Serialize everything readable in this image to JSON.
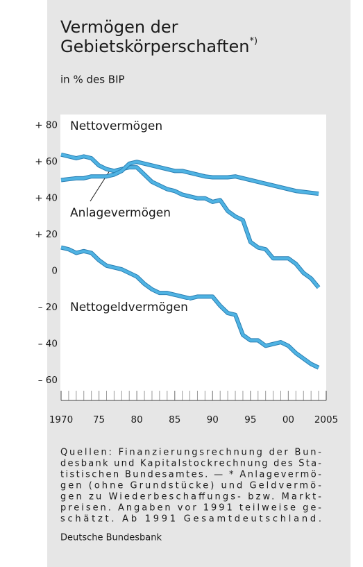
{
  "chart_data": {
    "type": "line",
    "title": [
      "Vermögen der",
      "Gebietskörperschaften"
    ],
    "footnote_marker": "*)",
    "y_label": "in % des BIP",
    "x": [
      1970,
      1971,
      1972,
      1973,
      1974,
      1975,
      1976,
      1977,
      1978,
      1979,
      1980,
      1981,
      1982,
      1983,
      1984,
      1985,
      1986,
      1987,
      1988,
      1989,
      1990,
      1991,
      1992,
      1993,
      1994,
      1995,
      1996,
      1997,
      1998,
      1999,
      2000,
      2001,
      2002,
      2003,
      2004
    ],
    "series": [
      {
        "name": "Nettovermögen",
        "color": "#4fb3e3",
        "values": [
          64,
          63,
          62,
          63,
          62,
          58,
          56,
          55,
          56,
          57,
          57,
          53,
          49,
          47,
          45,
          44,
          42,
          41,
          40,
          40,
          38,
          39,
          33,
          30,
          28,
          16,
          13,
          12,
          7,
          7,
          7,
          4,
          -1,
          -4,
          -9
        ]
      },
      {
        "name": "Anlagevermögen",
        "color": "#4fb3e3",
        "values": [
          50,
          50.5,
          51,
          51,
          52,
          52,
          52,
          53,
          55,
          59,
          60,
          59,
          58,
          57,
          56,
          55,
          55,
          54,
          53,
          52,
          51.5,
          51.5,
          51.5,
          52,
          51,
          50,
          49,
          48,
          47,
          46,
          45,
          44,
          43.5,
          43,
          42.5
        ]
      },
      {
        "name": "Nettogeldvermögen",
        "color": "#4fb3e3",
        "values": [
          13,
          12,
          10,
          11,
          10,
          6,
          3,
          2,
          1,
          -1,
          -3,
          -7,
          -10,
          -12,
          -12,
          -13,
          -14,
          -15,
          -14,
          -14,
          -14,
          -19,
          -23,
          -24,
          -35,
          -38,
          -38,
          -41,
          -40,
          -39,
          -41,
          -45,
          -48,
          -51,
          -53
        ]
      }
    ],
    "xlim": [
      1970,
      2005
    ],
    "xticks": [
      1970,
      {
        "value": 1975,
        "label": "75"
      },
      {
        "value": 1980,
        "label": "80"
      },
      {
        "value": 1985,
        "label": "85"
      },
      {
        "value": 1990,
        "label": "90"
      },
      {
        "value": 1995,
        "label": "95"
      },
      {
        "value": 2000,
        "label": "00"
      },
      2005
    ],
    "xminorticks": [
      1971,
      1972,
      1973,
      1974,
      1975,
      1976,
      1977,
      1978,
      1979,
      1980,
      1981,
      1982,
      1983,
      1984,
      1985,
      1986,
      1987,
      1988,
      1989,
      1990,
      1991,
      1992,
      1993,
      1994,
      1995,
      1996,
      1997,
      1998,
      1999,
      2000,
      2001,
      2002,
      2003,
      2004
    ],
    "ylim": [
      -71,
      86
    ],
    "yticks": [
      {
        "value": 80,
        "label": "+ 80"
      },
      {
        "value": 60,
        "label": "+ 60"
      },
      {
        "value": 40,
        "label": "+ 40"
      },
      {
        "value": 20,
        "label": "+ 20"
      },
      0,
      {
        "value": -20,
        "label": "– 20"
      },
      {
        "value": -40,
        "label": "– 40"
      },
      {
        "value": -60,
        "label": "– 60"
      }
    ],
    "notes": [
      "Quellen: Finanzierungsrechnung der Bun-",
      "desbank und Kapitalstockrechnung des Sta-",
      "tistischen Bundesamtes. — * Anlagevermö-",
      "gen (ohne Grundstücke) und Geldvermö-",
      "gen zu Wiederbeschaffungs- bzw. Markt-",
      "preisen. Angaben vor 1991 teilweise ge-",
      "schätzt. Ab 1991 Gesamtdeutschland."
    ],
    "source": "Deutsche Bundesbank"
  }
}
